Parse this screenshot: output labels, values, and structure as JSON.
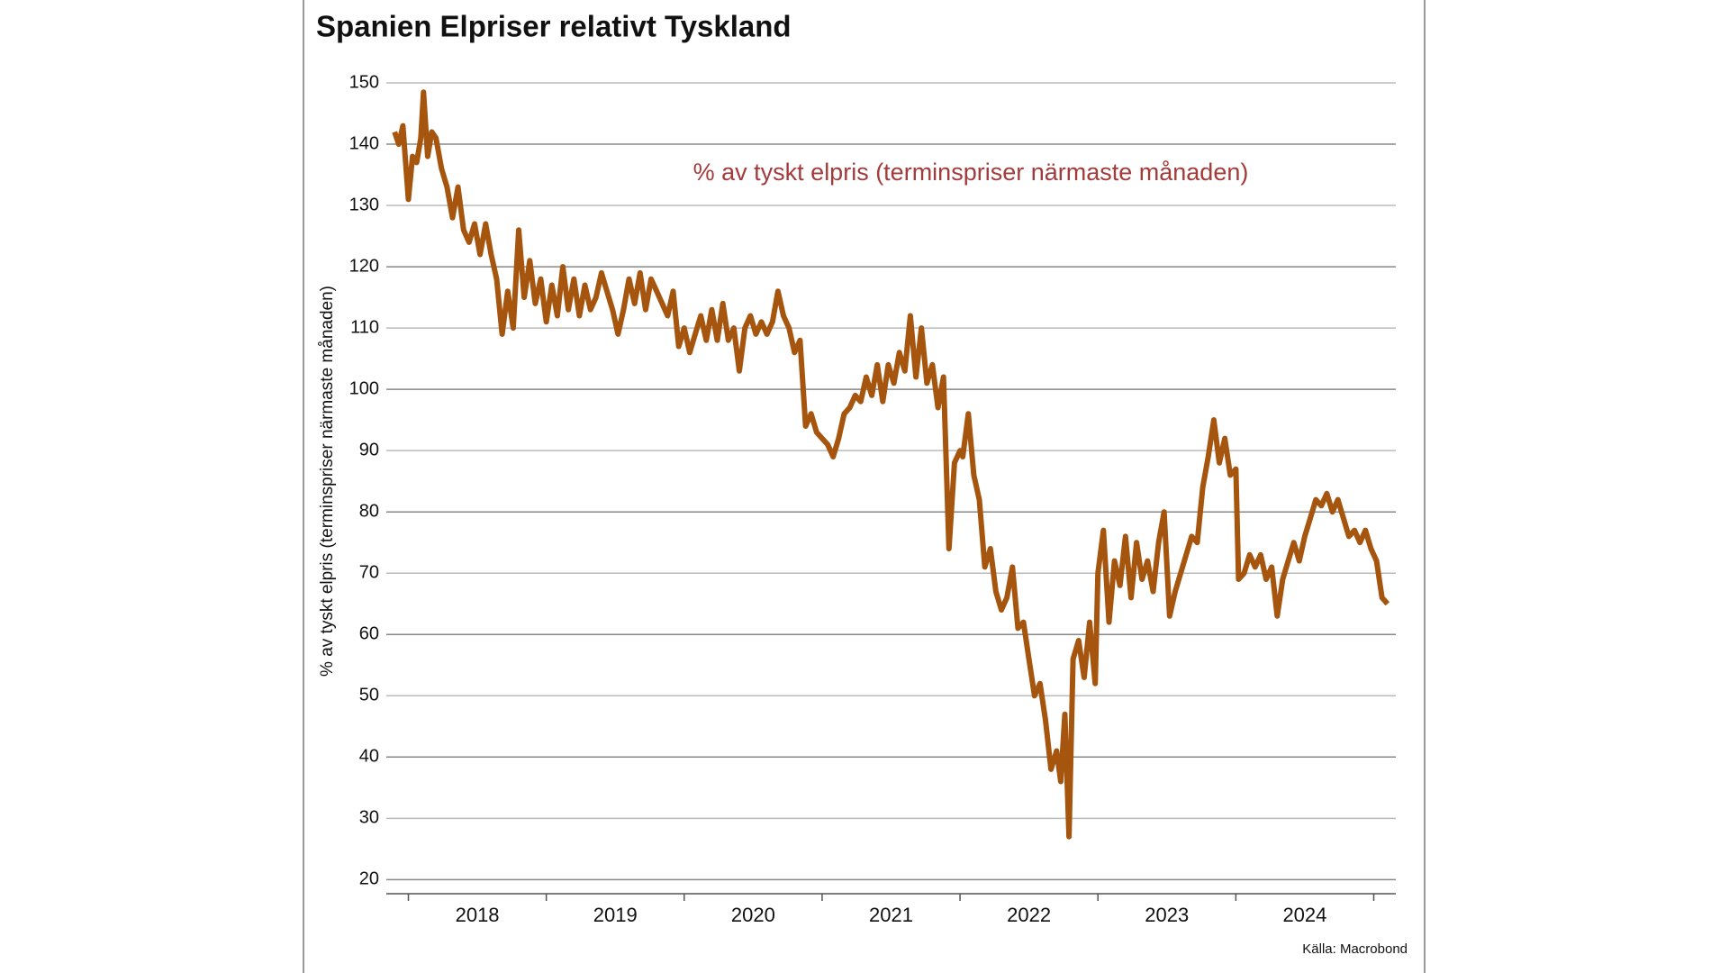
{
  "chart_data": {
    "type": "line",
    "title": "Spanien Elpriser relativt Tyskland",
    "y_label": "% av tyskt elpris (terminspriser närmaste månaden)",
    "source": "Källa: Macrobond",
    "x": [
      2017.9,
      2017.93,
      2017.96,
      2018.0,
      2018.03,
      2018.06,
      2018.09,
      2018.11,
      2018.14,
      2018.17,
      2018.2,
      2018.24,
      2018.28,
      2018.32,
      2018.36,
      2018.4,
      2018.44,
      2018.48,
      2018.52,
      2018.56,
      2018.6,
      2018.64,
      2018.68,
      2018.72,
      2018.76,
      2018.8,
      2018.84,
      2018.88,
      2018.92,
      2018.96,
      2019.0,
      2019.04,
      2019.08,
      2019.12,
      2019.16,
      2019.2,
      2019.24,
      2019.28,
      2019.32,
      2019.36,
      2019.4,
      2019.44,
      2019.48,
      2019.52,
      2019.56,
      2019.6,
      2019.64,
      2019.68,
      2019.72,
      2019.76,
      2019.8,
      2019.84,
      2019.88,
      2019.92,
      2019.96,
      2020.0,
      2020.04,
      2020.08,
      2020.12,
      2020.16,
      2020.2,
      2020.24,
      2020.28,
      2020.32,
      2020.36,
      2020.4,
      2020.44,
      2020.48,
      2020.52,
      2020.56,
      2020.6,
      2020.64,
      2020.68,
      2020.72,
      2020.76,
      2020.8,
      2020.84,
      2020.88,
      2020.92,
      2020.96,
      2021.0,
      2021.04,
      2021.08,
      2021.12,
      2021.16,
      2021.2,
      2021.24,
      2021.28,
      2021.32,
      2021.36,
      2021.4,
      2021.44,
      2021.48,
      2021.52,
      2021.56,
      2021.6,
      2021.64,
      2021.68,
      2021.72,
      2021.76,
      2021.8,
      2021.84,
      2021.88,
      2021.92,
      2021.96,
      2022.0,
      2022.02,
      2022.06,
      2022.1,
      2022.14,
      2022.18,
      2022.22,
      2022.26,
      2022.3,
      2022.34,
      2022.38,
      2022.42,
      2022.46,
      2022.5,
      2022.54,
      2022.58,
      2022.62,
      2022.66,
      2022.7,
      2022.73,
      2022.76,
      2022.79,
      2022.82,
      2022.86,
      2022.9,
      2022.94,
      2022.98,
      2023.0,
      2023.04,
      2023.08,
      2023.12,
      2023.16,
      2023.2,
      2023.24,
      2023.28,
      2023.32,
      2023.36,
      2023.4,
      2023.44,
      2023.48,
      2023.52,
      2023.56,
      2023.6,
      2023.64,
      2023.68,
      2023.72,
      2023.76,
      2023.8,
      2023.84,
      2023.88,
      2023.92,
      2023.96,
      2024.0,
      2024.02,
      2024.06,
      2024.1,
      2024.14,
      2024.18,
      2024.22,
      2024.26,
      2024.3,
      2024.34,
      2024.38,
      2024.42,
      2024.46,
      2024.5,
      2024.54,
      2024.58,
      2024.62,
      2024.66,
      2024.7,
      2024.74,
      2024.78,
      2024.82,
      2024.86,
      2024.9,
      2024.94,
      2024.98,
      2025.02,
      2025.06,
      2025.1
    ],
    "series": [
      {
        "name": "% av tyskt elpris (terminspriser närmaste månaden)",
        "color": "#a5550d",
        "values": [
          142,
          140,
          143,
          131,
          138,
          137,
          141,
          148.5,
          138,
          142,
          141,
          136,
          133,
          128,
          133,
          126,
          124,
          127,
          122,
          127,
          122,
          118,
          109,
          116,
          110,
          126,
          115,
          121,
          114,
          118,
          111,
          117,
          112,
          120,
          113,
          118,
          112,
          117,
          113,
          115,
          119,
          116,
          113,
          109,
          113,
          118,
          114,
          119,
          113,
          118,
          116,
          114,
          112,
          116,
          107,
          110,
          106,
          109,
          112,
          108,
          113,
          108,
          114,
          108,
          110,
          103,
          110,
          112,
          109,
          111,
          109,
          111,
          116,
          112,
          110,
          106,
          108,
          94,
          96,
          93,
          92,
          91,
          89,
          92,
          96,
          97,
          99,
          98,
          102,
          99,
          104,
          98,
          104,
          101,
          106,
          103,
          112,
          102,
          110,
          101,
          104,
          97,
          102,
          74,
          88,
          90,
          89,
          96,
          86,
          82,
          71,
          74,
          67,
          64,
          66,
          71,
          61,
          62,
          56,
          50,
          52,
          46,
          38,
          41,
          36,
          47,
          27,
          56,
          59,
          53,
          62,
          52,
          70,
          77,
          62,
          72,
          68,
          76,
          66,
          75,
          69,
          72,
          67,
          75,
          80,
          63,
          67,
          70,
          73,
          76,
          75,
          84,
          89,
          95,
          88,
          92,
          86,
          87,
          69,
          70,
          73,
          71,
          73,
          69,
          71,
          63,
          69,
          72,
          75,
          72,
          76,
          79,
          82,
          81,
          83,
          80,
          82,
          79,
          76,
          77,
          75,
          77,
          74,
          72,
          66,
          65
        ]
      }
    ],
    "xlim": [
      2017.84,
      2025.16
    ],
    "xticks": [
      {
        "value": 2018.5,
        "label": "2018"
      },
      {
        "value": 2019.5,
        "label": "2019"
      },
      {
        "value": 2020.5,
        "label": "2020"
      },
      {
        "value": 2021.5,
        "label": "2021"
      },
      {
        "value": 2022.5,
        "label": "2022"
      },
      {
        "value": 2023.5,
        "label": "2023"
      },
      {
        "value": 2024.5,
        "label": "2024"
      }
    ],
    "ylim": [
      17.7,
      150
    ],
    "yticks": [
      20,
      30,
      40,
      50,
      60,
      70,
      80,
      90,
      100,
      110,
      120,
      130,
      140,
      150
    ],
    "grid": true
  }
}
